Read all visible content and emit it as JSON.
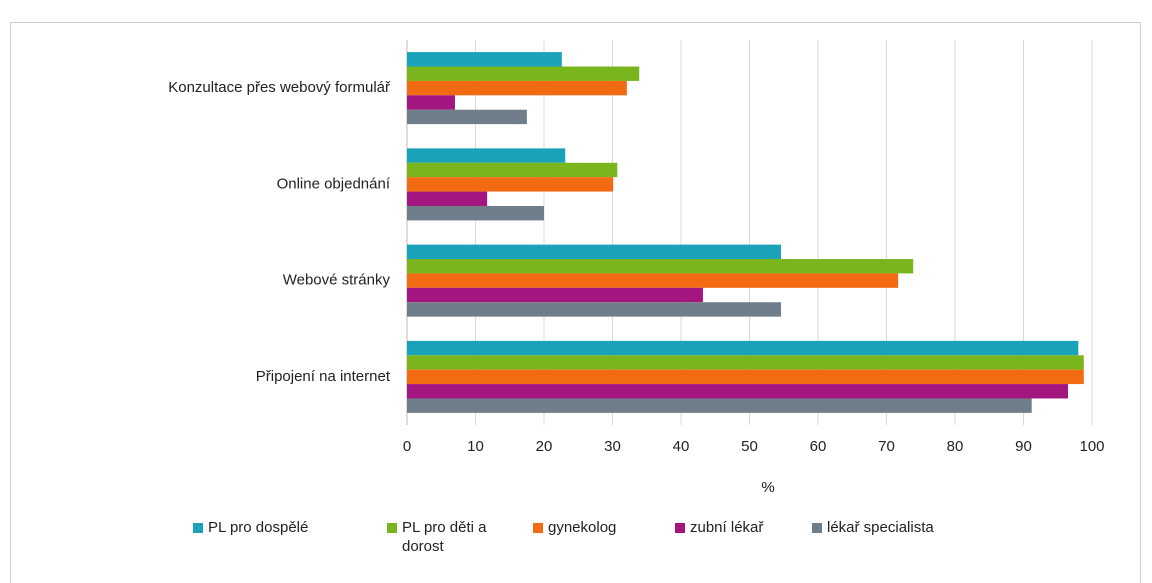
{
  "chart_data": {
    "type": "bar",
    "orientation": "horizontal",
    "categories": [
      "Konzultace přes webový formulář",
      "Online objednání",
      "Webové stránky",
      "Připojení na internet"
    ],
    "series": [
      {
        "name": "PL pro dospělé",
        "color": "#1aa2b9",
        "values": [
          22.6,
          23.1,
          54.6,
          98.0
        ]
      },
      {
        "name": "PL pro děti a dorost",
        "color": "#7ab51d",
        "values": [
          33.9,
          30.7,
          73.9,
          98.8
        ]
      },
      {
        "name": "gynekolog",
        "color": "#f26a12",
        "values": [
          32.1,
          30.1,
          71.7,
          98.8
        ]
      },
      {
        "name": "zubní lékař",
        "color": "#a3157f",
        "values": [
          7.0,
          11.7,
          43.2,
          96.5
        ]
      },
      {
        "name": "lékař specialista",
        "color": "#6f7e8a",
        "values": [
          17.5,
          20.0,
          54.6,
          91.2
        ]
      }
    ],
    "xlabel": "%",
    "xlim": [
      0,
      100
    ],
    "xticks": [
      0,
      10,
      20,
      30,
      40,
      50,
      60,
      70,
      80,
      90,
      100
    ],
    "grid": true,
    "legend": "bottom"
  }
}
